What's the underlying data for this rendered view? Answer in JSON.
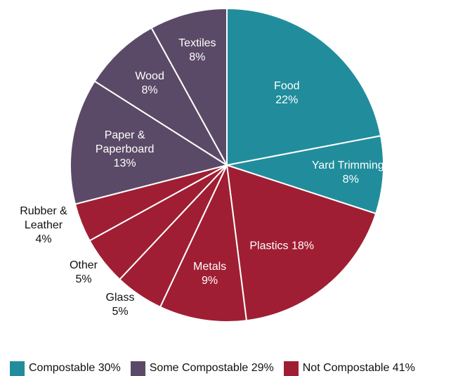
{
  "chart_data": {
    "type": "pie",
    "slices": [
      {
        "name": "Food",
        "value": 22,
        "label_lines": [
          "Food",
          "22%"
        ],
        "group": "Compostable"
      },
      {
        "name": "Yard Trimmings",
        "value": 8,
        "label_lines": [
          "Yard Trimmings",
          "8%"
        ],
        "group": "Compostable"
      },
      {
        "name": "Plastics",
        "value": 18,
        "label_lines": [
          "Plastics 18%"
        ],
        "group": "Not Compostable"
      },
      {
        "name": "Metals",
        "value": 9,
        "label_lines": [
          "Metals",
          "9%"
        ],
        "group": "Not Compostable"
      },
      {
        "name": "Glass",
        "value": 5,
        "label_lines": [
          "Glass",
          "5%"
        ],
        "group": "Not Compostable"
      },
      {
        "name": "Other",
        "value": 5,
        "label_lines": [
          "Other",
          "5%"
        ],
        "group": "Not Compostable"
      },
      {
        "name": "Rubber & Leather",
        "value": 4,
        "label_lines": [
          "Rubber &",
          "Leather",
          "4%"
        ],
        "group": "Not Compostable"
      },
      {
        "name": "Paper & Paperboard",
        "value": 13,
        "label_lines": [
          "Paper &",
          "Paperboard",
          "13%"
        ],
        "group": "Some Compostable"
      },
      {
        "name": "Wood",
        "value": 8,
        "label_lines": [
          "Wood",
          "8%"
        ],
        "group": "Some Compostable"
      },
      {
        "name": "Textiles",
        "value": 8,
        "label_lines": [
          "Textiles",
          "8%"
        ],
        "group": "Some Compostable"
      }
    ],
    "legend": [
      {
        "label": "Compostable 30%",
        "color": "#218D9C"
      },
      {
        "label": "Some Compostable 29%",
        "color": "#5B4A67"
      },
      {
        "label": "Not Compostable 41%",
        "color": "#A01E33"
      }
    ],
    "group_colors": {
      "Compostable": "#218D9C",
      "Some Compostable": "#5B4A67",
      "Not Compostable": "#A01E33"
    },
    "legend_position": "bottom"
  }
}
